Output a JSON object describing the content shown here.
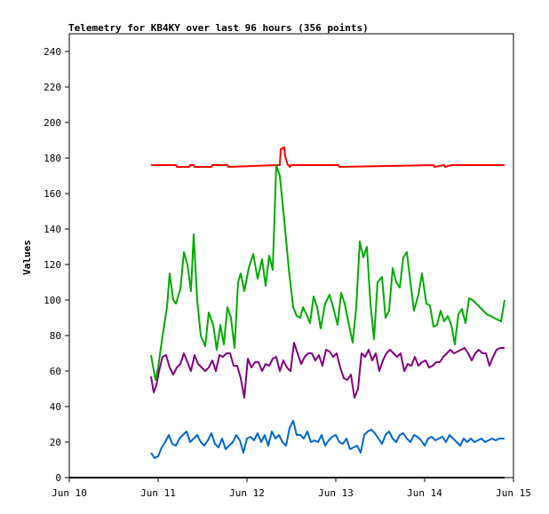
{
  "chart_data": {
    "type": "line",
    "title": "Telemetry for KB4KY over last 96 hours (356 points)",
    "ylabel": "Values",
    "xlabel": "",
    "x_axis": "time",
    "xlim": [
      "Jun 10",
      "Jun 15"
    ],
    "ylim": [
      0,
      250
    ],
    "x_ticks": [
      "Jun 10",
      "Jun 11",
      "Jun 12",
      "Jun 13",
      "Jun 14",
      "Jun 15"
    ],
    "y_ticks": [
      0,
      20,
      40,
      60,
      80,
      100,
      120,
      140,
      160,
      180,
      200,
      220,
      240
    ],
    "grid": false,
    "legend": "none",
    "x_unit": "days",
    "series": [
      {
        "color": "#ff0000",
        "x": [
          10.92,
          11.2,
          11.21,
          11.35,
          11.36,
          11.4,
          11.41,
          11.6,
          11.61,
          11.78,
          11.79,
          12.34,
          12.37,
          12.38,
          12.42,
          12.43,
          12.46,
          12.47,
          12.48,
          12.5,
          12.51,
          13.03,
          13.04,
          14.1,
          14.11,
          14.22,
          14.23,
          14.3,
          14.31,
          14.9
        ],
        "values": [
          176,
          176,
          175,
          175,
          176,
          176,
          175,
          175,
          176,
          176,
          175,
          176,
          176,
          185,
          186,
          181,
          176,
          176,
          175,
          176,
          176,
          176,
          175,
          176,
          175,
          176,
          175,
          176,
          176,
          176
        ]
      },
      {
        "color": "#00aa00",
        "x": [
          10.92,
          10.97,
          11.0,
          11.05,
          11.1,
          11.13,
          11.17,
          11.2,
          11.25,
          11.29,
          11.33,
          11.37,
          11.4,
          11.44,
          11.48,
          11.53,
          11.57,
          11.62,
          11.66,
          11.7,
          11.74,
          11.78,
          11.82,
          11.86,
          11.9,
          11.93,
          11.97,
          12.02,
          12.07,
          12.12,
          12.17,
          12.21,
          12.25,
          12.29,
          12.33,
          12.37,
          12.42,
          12.47,
          12.52,
          12.56,
          12.6,
          12.63,
          12.67,
          12.71,
          12.75,
          12.79,
          12.83,
          12.88,
          12.93,
          12.97,
          13.02,
          13.06,
          13.1,
          13.14,
          13.19,
          13.23,
          13.27,
          13.31,
          13.35,
          13.39,
          13.43,
          13.47,
          13.52,
          13.56,
          13.6,
          13.64,
          13.68,
          13.72,
          13.76,
          13.8,
          13.84,
          13.88,
          13.93,
          13.97,
          14.02,
          14.06,
          14.1,
          14.14,
          14.18,
          14.22,
          14.26,
          14.3,
          14.34,
          14.38,
          14.42,
          14.46,
          14.5,
          14.54,
          14.58,
          14.62,
          14.66,
          14.7,
          14.74,
          14.78,
          14.82,
          14.86,
          14.9
        ],
        "values": [
          69,
          55,
          62,
          80,
          96,
          115,
          100,
          98,
          106,
          127,
          120,
          105,
          137,
          100,
          80,
          74,
          93,
          86,
          72,
          86,
          75,
          96,
          90,
          73,
          110,
          115,
          105,
          118,
          126,
          112,
          123,
          108,
          125,
          117,
          176,
          170,
          145,
          118,
          96,
          91,
          90,
          96,
          92,
          87,
          102,
          96,
          84,
          98,
          103,
          96,
          86,
          104,
          98,
          88,
          76,
          96,
          133,
          124,
          130,
          98,
          78,
          110,
          113,
          90,
          94,
          118,
          110,
          107,
          124,
          127,
          110,
          94,
          103,
          115,
          98,
          97,
          85,
          86,
          94,
          88,
          91,
          86,
          75,
          92,
          95,
          87,
          101,
          100,
          98,
          96,
          94,
          92,
          91,
          90,
          89,
          88,
          100
        ],
        "x_note": ""
      },
      {
        "color": "#800080",
        "x": [
          10.92,
          10.95,
          10.98,
          11.01,
          11.05,
          11.09,
          11.13,
          11.17,
          11.21,
          11.25,
          11.29,
          11.33,
          11.37,
          11.41,
          11.45,
          11.49,
          11.53,
          11.57,
          11.61,
          11.65,
          11.69,
          11.73,
          11.77,
          11.81,
          11.85,
          11.89,
          11.93,
          11.97,
          12.01,
          12.05,
          12.09,
          12.13,
          12.17,
          12.21,
          12.25,
          12.29,
          12.33,
          12.37,
          12.41,
          12.45,
          12.49,
          12.53,
          12.57,
          12.61,
          12.65,
          12.69,
          12.73,
          12.77,
          12.81,
          12.85,
          12.89,
          12.93,
          12.97,
          13.01,
          13.05,
          13.09,
          13.13,
          13.17,
          13.21,
          13.25,
          13.29,
          13.33,
          13.37,
          13.41,
          13.45,
          13.49,
          13.53,
          13.57,
          13.61,
          13.65,
          13.69,
          13.73,
          13.77,
          13.81,
          13.85,
          13.89,
          13.93,
          13.97,
          14.01,
          14.05,
          14.09,
          14.13,
          14.17,
          14.21,
          14.25,
          14.29,
          14.33,
          14.37,
          14.41,
          14.45,
          14.49,
          14.53,
          14.57,
          14.61,
          14.65,
          14.69,
          14.73,
          14.77,
          14.81,
          14.85,
          14.9
        ],
        "values": [
          57,
          48,
          52,
          60,
          68,
          69,
          62,
          58,
          62,
          64,
          70,
          65,
          60,
          69,
          64,
          62,
          60,
          62,
          66,
          60,
          69,
          68,
          70,
          70,
          63,
          63,
          56,
          45,
          67,
          62,
          65,
          65,
          60,
          64,
          63,
          67,
          68,
          60,
          66,
          62,
          60,
          76,
          70,
          64,
          68,
          70,
          70,
          66,
          69,
          63,
          72,
          71,
          68,
          70,
          62,
          56,
          55,
          58,
          45,
          50,
          70,
          68,
          72,
          66,
          70,
          60,
          66,
          70,
          72,
          70,
          68,
          70,
          60,
          64,
          63,
          68,
          63,
          65,
          66,
          62,
          63,
          65,
          65,
          68,
          70,
          72,
          70,
          71,
          72,
          73,
          70,
          66,
          70,
          72,
          70,
          70,
          63,
          68,
          72,
          73,
          73
        ]
      },
      {
        "color": "#0066cc",
        "x": [
          10.92,
          10.96,
          11.0,
          11.04,
          11.08,
          11.12,
          11.16,
          11.2,
          11.24,
          11.28,
          11.32,
          11.36,
          11.4,
          11.44,
          11.48,
          11.52,
          11.56,
          11.6,
          11.64,
          11.68,
          11.72,
          11.76,
          11.8,
          11.84,
          11.88,
          11.92,
          11.96,
          12.0,
          12.04,
          12.08,
          12.12,
          12.16,
          12.2,
          12.24,
          12.28,
          12.32,
          12.36,
          12.4,
          12.44,
          12.48,
          12.52,
          12.56,
          12.6,
          12.64,
          12.68,
          12.72,
          12.76,
          12.8,
          12.84,
          12.88,
          12.92,
          12.96,
          13.0,
          13.04,
          13.08,
          13.12,
          13.16,
          13.2,
          13.24,
          13.28,
          13.32,
          13.36,
          13.4,
          13.44,
          13.48,
          13.52,
          13.56,
          13.6,
          13.64,
          13.68,
          13.72,
          13.76,
          13.8,
          13.84,
          13.88,
          13.92,
          13.96,
          14.0,
          14.04,
          14.08,
          14.12,
          14.16,
          14.2,
          14.24,
          14.28,
          14.32,
          14.36,
          14.4,
          14.44,
          14.48,
          14.52,
          14.56,
          14.6,
          14.64,
          14.68,
          14.72,
          14.76,
          14.8,
          14.84,
          14.9
        ],
        "values": [
          14,
          11,
          12,
          17,
          20,
          24,
          19,
          18,
          22,
          24,
          26,
          20,
          22,
          24,
          20,
          18,
          21,
          25,
          19,
          17,
          22,
          16,
          18,
          20,
          24,
          21,
          14,
          22,
          23,
          21,
          25,
          20,
          24,
          18,
          26,
          22,
          24,
          20,
          18,
          28,
          32,
          24,
          24,
          22,
          26,
          20,
          21,
          20,
          24,
          18,
          21,
          23,
          24,
          20,
          19,
          22,
          16,
          17,
          18,
          14,
          24,
          26,
          27,
          25,
          22,
          19,
          24,
          26,
          22,
          20,
          24,
          25,
          22,
          20,
          24,
          23,
          21,
          18,
          22,
          23,
          21,
          22,
          23,
          20,
          24,
          22,
          20,
          18,
          22,
          20,
          22,
          20,
          21,
          22,
          20,
          21,
          22,
          21,
          22,
          22
        ]
      },
      {
        "color": "#000000",
        "x": [
          10.0,
          14.9
        ],
        "values": [
          0,
          0
        ]
      }
    ]
  }
}
